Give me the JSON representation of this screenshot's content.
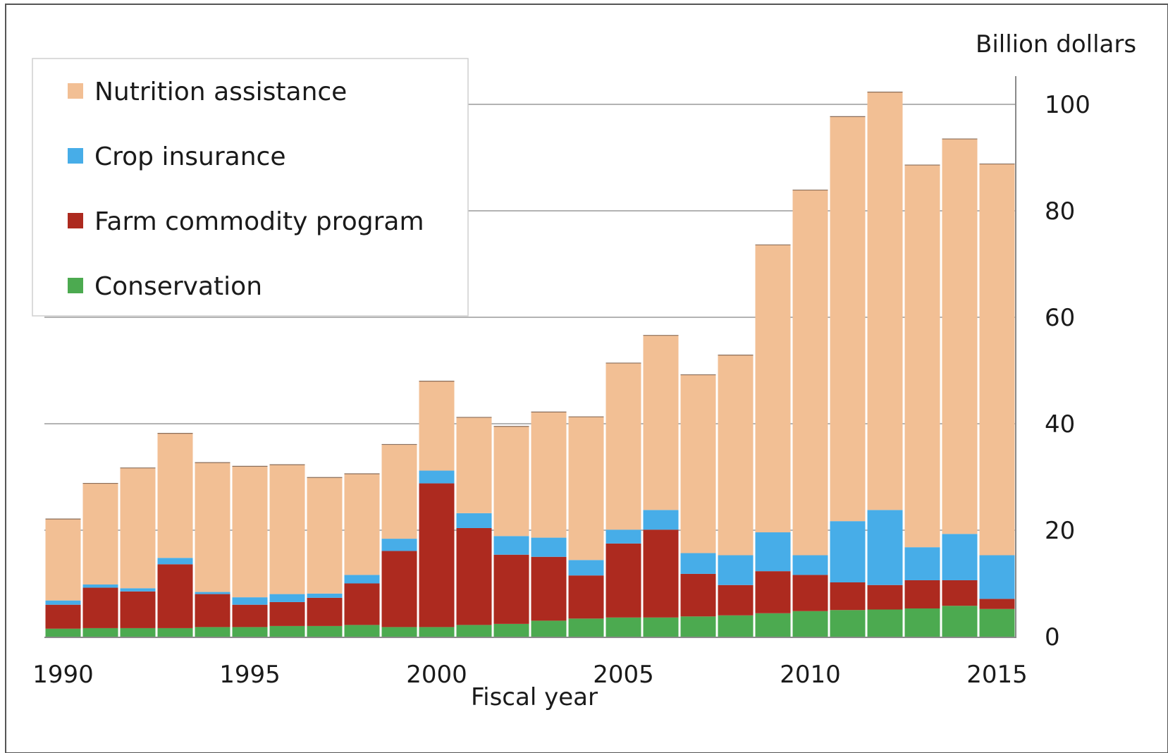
{
  "chart_data": {
    "type": "bar",
    "stacked": true,
    "title": "",
    "xlabel": "Fiscal year",
    "ylabel": "Billion dollars",
    "ylim": [
      0,
      100
    ],
    "yticks": [
      "0",
      "20",
      "40",
      "60",
      "80",
      "100"
    ],
    "xticks": [
      "1990",
      "1995",
      "2000",
      "2005",
      "2010",
      "2015"
    ],
    "grid": "horizontal",
    "legend_position": "top-left",
    "categories": [
      1990,
      1991,
      1992,
      1993,
      1994,
      1995,
      1996,
      1997,
      1998,
      1999,
      2000,
      2001,
      2002,
      2003,
      2004,
      2005,
      2006,
      2007,
      2008,
      2009,
      2010,
      2011,
      2012,
      2013,
      2014,
      2015
    ],
    "series": [
      {
        "name": "Conservation",
        "color": "#4caa50",
        "values": [
          1.5,
          1.6,
          1.6,
          1.6,
          1.8,
          1.8,
          2.0,
          2.0,
          2.2,
          1.8,
          1.8,
          2.2,
          2.4,
          3.0,
          3.4,
          3.6,
          3.6,
          3.8,
          4.0,
          4.4,
          4.8,
          5.0,
          5.1,
          5.3,
          5.8,
          5.2
        ]
      },
      {
        "name": "Farm commodity program",
        "color": "#ad2a1f",
        "values": [
          4.5,
          7.6,
          6.9,
          12.0,
          6.2,
          4.2,
          4.5,
          5.3,
          7.8,
          14.3,
          27.0,
          18.2,
          13.0,
          12.0,
          8.1,
          13.9,
          16.5,
          8.0,
          5.7,
          7.9,
          6.8,
          5.2,
          4.6,
          5.3,
          4.8,
          1.9
        ]
      },
      {
        "name": "Crop insurance",
        "color": "#47ade8",
        "values": [
          0.8,
          0.6,
          0.6,
          1.2,
          0.4,
          1.4,
          1.5,
          0.8,
          1.6,
          2.3,
          2.4,
          2.8,
          3.5,
          3.6,
          2.9,
          2.6,
          3.7,
          3.9,
          5.6,
          7.3,
          3.7,
          11.5,
          14.1,
          6.2,
          8.7,
          8.2
        ]
      },
      {
        "name": "Nutrition assistance",
        "color": "#f2bf94",
        "values": [
          15.3,
          19.0,
          22.6,
          23.4,
          24.3,
          24.6,
          24.3,
          21.8,
          19.0,
          17.7,
          16.8,
          18.0,
          20.6,
          23.6,
          26.9,
          31.3,
          32.8,
          33.5,
          37.6,
          54.0,
          68.6,
          76.0,
          78.5,
          71.8,
          74.2,
          73.5
        ]
      }
    ],
    "legend_order": [
      "Nutrition assistance",
      "Crop insurance",
      "Farm commodity program",
      "Conservation"
    ]
  }
}
